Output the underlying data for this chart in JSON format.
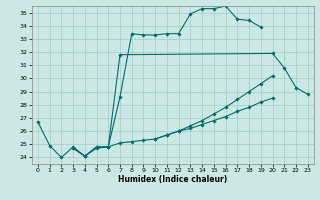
{
  "title": "",
  "xlabel": "Humidex (Indice chaleur)",
  "xlim": [
    -0.5,
    23.5
  ],
  "ylim": [
    23.5,
    35.5
  ],
  "yticks": [
    24,
    25,
    26,
    27,
    28,
    29,
    30,
    31,
    32,
    33,
    34,
    35
  ],
  "xticks": [
    0,
    1,
    2,
    3,
    4,
    5,
    6,
    7,
    8,
    9,
    10,
    11,
    12,
    13,
    14,
    15,
    16,
    17,
    18,
    19,
    20,
    21,
    22,
    23
  ],
  "bg_color": "#cce8e4",
  "grid_color": "#aacfca",
  "line_color": "#006e6e",
  "lines": [
    {
      "x": [
        0,
        1,
        2,
        3,
        4,
        5,
        6,
        7,
        8,
        9,
        10,
        11,
        12,
        13,
        14,
        15,
        16,
        17,
        18,
        19
      ],
      "y": [
        26.7,
        24.9,
        24.0,
        24.8,
        24.1,
        24.7,
        24.8,
        28.6,
        33.4,
        33.3,
        33.3,
        33.4,
        33.4,
        34.9,
        35.3,
        35.3,
        35.5,
        34.5,
        34.4,
        33.9
      ]
    },
    {
      "x": [
        3,
        4,
        5,
        6,
        7,
        20,
        21,
        22,
        23
      ],
      "y": [
        24.7,
        24.1,
        24.8,
        24.8,
        31.8,
        31.9,
        30.8,
        29.3,
        28.8
      ]
    },
    {
      "x": [
        3,
        4,
        5,
        6,
        7,
        8,
        9,
        10,
        11,
        12,
        13,
        14,
        15,
        16,
        17,
        18,
        19,
        20
      ],
      "y": [
        24.7,
        24.1,
        24.8,
        24.8,
        25.1,
        25.2,
        25.3,
        25.4,
        25.7,
        26.0,
        26.2,
        26.5,
        26.8,
        27.1,
        27.5,
        27.8,
        28.2,
        28.5
      ]
    },
    {
      "x": [
        10,
        11,
        12,
        13,
        14,
        15,
        16,
        17,
        18,
        19,
        20
      ],
      "y": [
        25.4,
        25.7,
        26.0,
        26.4,
        26.8,
        27.3,
        27.8,
        28.4,
        29.0,
        29.6,
        30.2
      ]
    }
  ]
}
